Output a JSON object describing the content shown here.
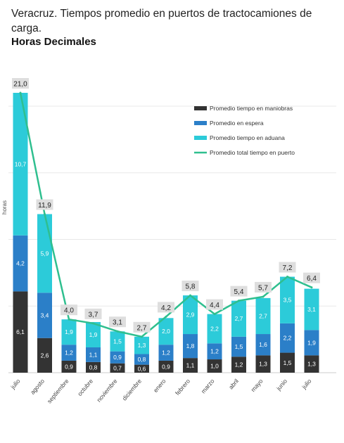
{
  "header": {
    "title": "Veracruz. Tiempos promedio en puertos de tractocamiones de carga.",
    "subtitle": "Horas Decimales"
  },
  "chart_data": {
    "type": "bar",
    "stacked": true,
    "ylabel": "horas",
    "ylim": [
      0,
      21
    ],
    "grid": true,
    "legend_position": "top-right",
    "categories": [
      "julio",
      "agosto",
      "septiembre",
      "octubre",
      "noviembre",
      "diciembre",
      "enero",
      "febrero",
      "marzo",
      "abril",
      "mayo",
      "junio",
      "julio"
    ],
    "series": [
      {
        "name": "Promedio tiempo en maniobras",
        "type": "bar",
        "color": "#333333",
        "values": [
          6.1,
          2.6,
          0.9,
          0.8,
          0.7,
          0.6,
          0.9,
          1.1,
          1.0,
          1.2,
          1.3,
          1.5,
          1.3
        ],
        "labels": [
          "6,1",
          "2,6",
          "0,9",
          "0,8",
          "0,7",
          "0,6",
          "0,9",
          "1,1",
          "1,0",
          "1,2",
          "1,3",
          "1,5",
          "1,3"
        ]
      },
      {
        "name": "Promedio en espera",
        "type": "bar",
        "color": "#2b7fc8",
        "values": [
          4.2,
          3.4,
          1.2,
          1.1,
          0.9,
          0.8,
          1.2,
          1.8,
          1.2,
          1.5,
          1.6,
          2.2,
          1.9
        ],
        "labels": [
          "4,2",
          "3,4",
          "1,2",
          "1,1",
          "0,9",
          "0,8",
          "1,2",
          "1,8",
          "1,2",
          "1,5",
          "1,6",
          "2,2",
          "1,9"
        ]
      },
      {
        "name": "Promedio tiempo en aduana",
        "type": "bar",
        "color": "#2ccbd9",
        "values": [
          10.7,
          5.9,
          1.9,
          1.9,
          1.5,
          1.3,
          2.0,
          2.9,
          2.2,
          2.7,
          2.7,
          3.5,
          3.1
        ],
        "labels": [
          "10,7",
          "5,9",
          "1,9",
          "1,9",
          "1,5",
          "1,3",
          "2,0",
          "2,9",
          "2,2",
          "2,7",
          "2,7",
          "3,5",
          "3,1"
        ]
      },
      {
        "name": "Promedio total tiempo en puerto",
        "type": "line",
        "color": "#2fbf8f",
        "values": [
          21.0,
          11.9,
          4.0,
          3.7,
          3.1,
          2.7,
          4.2,
          5.8,
          4.4,
          5.4,
          5.7,
          7.2,
          6.4
        ],
        "labels": [
          "21,0",
          "11,9",
          "4,0",
          "3,7",
          "3,1",
          "2,7",
          "4,2",
          "5,8",
          "4,4",
          "5,4",
          "5,7",
          "7,2",
          "6,4"
        ]
      }
    ]
  }
}
